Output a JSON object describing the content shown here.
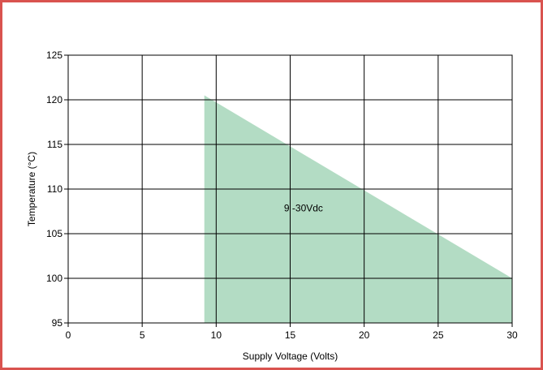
{
  "chart_data": {
    "type": "area",
    "title": "",
    "xlabel": "Supply Voltage (Volts)",
    "ylabel": "Temperature (°C)",
    "xlim": [
      0,
      30
    ],
    "ylim": [
      95,
      125
    ],
    "x_ticks": [
      0,
      5,
      10,
      15,
      20,
      25,
      30
    ],
    "y_ticks": [
      95,
      100,
      105,
      110,
      115,
      120,
      125
    ],
    "grid": true,
    "legend": "none",
    "series": [
      {
        "x": [
          9.2,
          30,
          30,
          9.2
        ],
        "y": [
          120.5,
          100,
          95,
          95
        ],
        "color": "#b3dcc4"
      }
    ],
    "annotations": [
      {
        "text": "9 -30Vdc",
        "x": 15.9,
        "y": 107.5
      }
    ],
    "border_color": "#d9534f"
  }
}
